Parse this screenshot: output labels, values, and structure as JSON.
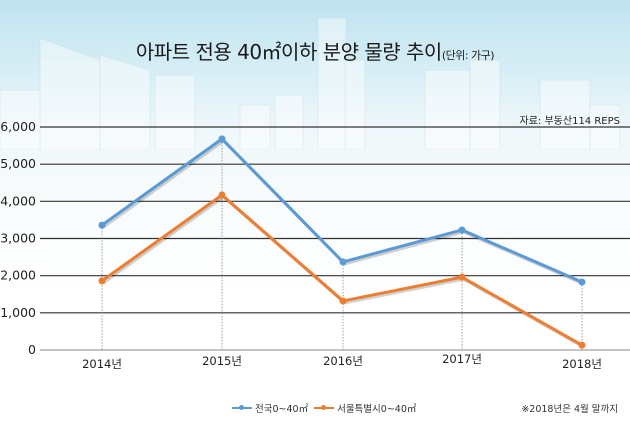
{
  "header": {
    "title": "아파트 전용 40㎡이하 분양 물량 추이",
    "unit": "(단위: 가구)",
    "source": "자료: 부동산114 REPS"
  },
  "footer": {
    "note": "※2018년은 4월 말까지"
  },
  "colors": {
    "series_national": "#5b9bd5",
    "series_seoul": "#ed7d31",
    "grid": "#333333"
  },
  "chart_data": {
    "type": "line",
    "title": "아파트 전용 40㎡이하 분양 물량 추이",
    "subtitle": "(단위: 가구)",
    "xlabel": "",
    "ylabel": "",
    "categories": [
      "2014년",
      "2015년",
      "2016년",
      "2017년",
      "2018년"
    ],
    "ylim": [
      0,
      6000
    ],
    "yticks": [
      0,
      1000,
      2000,
      3000,
      4000,
      5000,
      6000
    ],
    "ytick_labels": [
      "0",
      "1,000",
      "2,000",
      "3,000",
      "4,000",
      "5,000",
      "6,000"
    ],
    "grid": true,
    "legend_position": "bottom",
    "series": [
      {
        "name": "전국0~40㎡",
        "color": "#5b9bd5",
        "values": [
          3360,
          5680,
          2370,
          3230,
          1830
        ]
      },
      {
        "name": "서울특별시0~40㎡",
        "color": "#ed7d31",
        "values": [
          1860,
          4170,
          1320,
          1960,
          130
        ]
      }
    ],
    "annotations": [
      "자료: 부동산114 REPS",
      "※2018년은 4월 말까지"
    ]
  }
}
